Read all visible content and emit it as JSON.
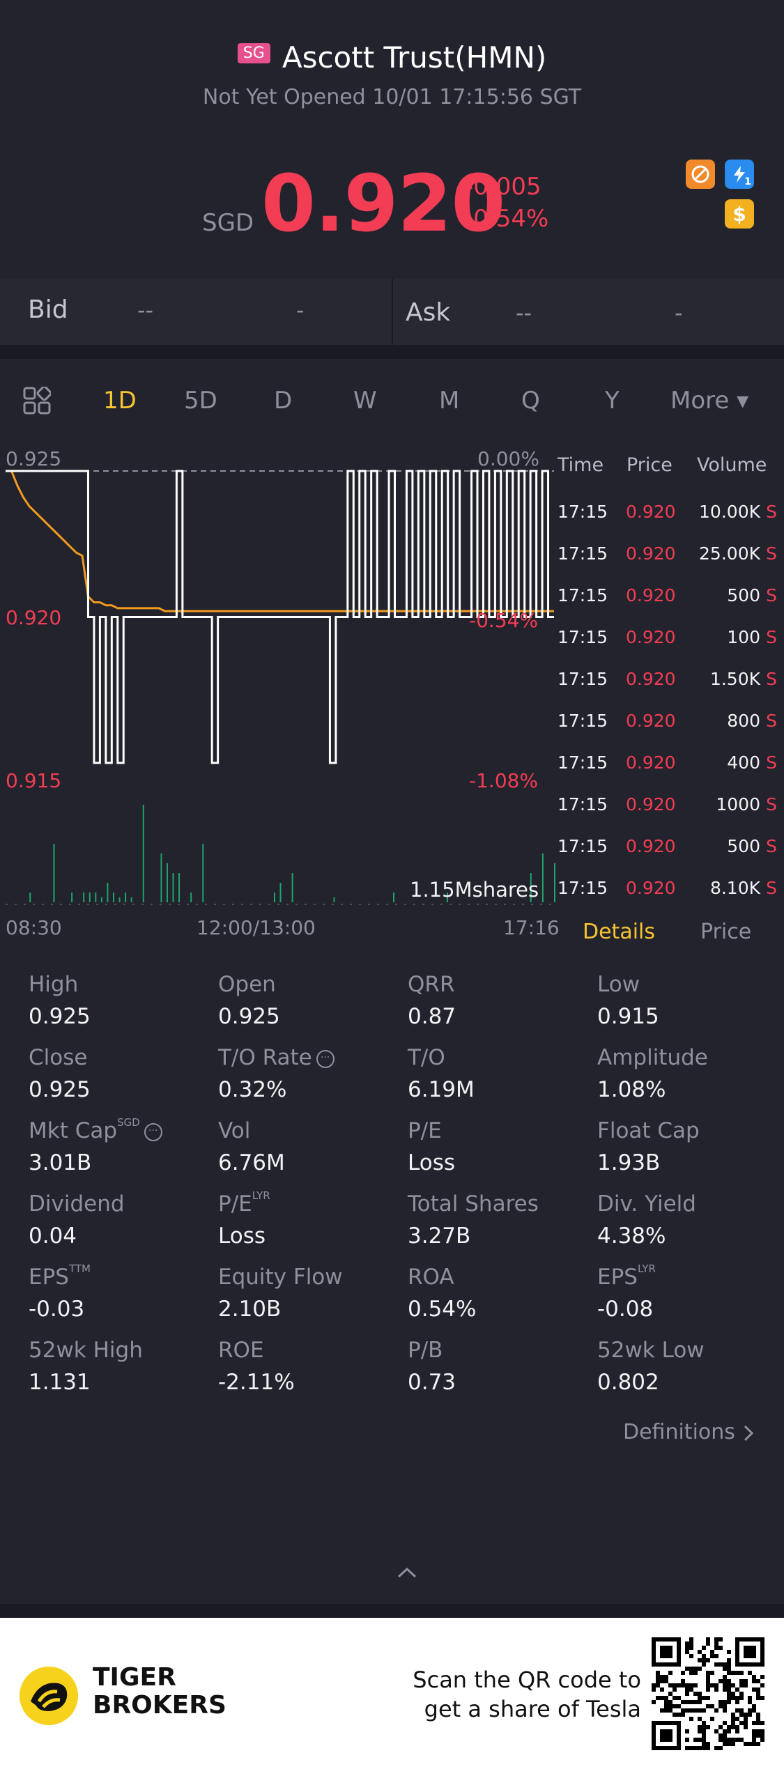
{
  "header": {
    "badge": "SG",
    "title": "Ascott Trust(HMN)",
    "status": "Not Yet Opened 10/01 17:15:56 SGT"
  },
  "quote": {
    "currency": "SGD",
    "price": "0.920",
    "change": "-0.005",
    "change_pct": "-0.54%"
  },
  "badges": {
    "b1_icon": "no-entry-icon",
    "b2_icon": "lightning-icon",
    "b2_sub": "1",
    "b3_icon": "dollar-icon",
    "b3_label": "$"
  },
  "bidask": {
    "bid_label": "Bid",
    "bid_price": "--",
    "bid_size": "-",
    "ask_label": "Ask",
    "ask_price": "--",
    "ask_size": "-"
  },
  "tabs": {
    "grid_icon": "grid-icon",
    "items": [
      "1D",
      "5D",
      "D",
      "W",
      "M",
      "Q",
      "Y"
    ],
    "more": "More ▾",
    "active": "1D"
  },
  "chart_labels": {
    "y_top": "0.925",
    "y_mid": "0.920",
    "y_bot": "0.915",
    "pct_top": "0.00%",
    "pct_mid": "-0.54%",
    "pct_bot": "-1.08%",
    "volume": "1.15Mshares",
    "x_start": "08:30",
    "x_mid": "12:00/13:00",
    "x_end": "17:16"
  },
  "chart_data": {
    "type": "line",
    "ylim": [
      0.915,
      0.925
    ],
    "x": [
      "08:30",
      "12:00/13:00",
      "17:16"
    ],
    "price_series": [
      0.925,
      0.925,
      0.925,
      0.925,
      0.925,
      0.925,
      0.925,
      0.925,
      0.925,
      0.925,
      0.925,
      0.925,
      0.925,
      0.925,
      0.92,
      0.915,
      0.92,
      0.915,
      0.92,
      0.915,
      0.92,
      0.92,
      0.92,
      0.92,
      0.92,
      0.92,
      0.92,
      0.92,
      0.92,
      0.925,
      0.92,
      0.92,
      0.92,
      0.92,
      0.92,
      0.915,
      0.92,
      0.92,
      0.92,
      0.92,
      0.92,
      0.92,
      0.92,
      0.92,
      0.92,
      0.92,
      0.92,
      0.92,
      0.92,
      0.92,
      0.92,
      0.92,
      0.92,
      0.92,
      0.92,
      0.915,
      0.92,
      0.92,
      0.925,
      0.92,
      0.925,
      0.92,
      0.925,
      0.92,
      0.92,
      0.925,
      0.92,
      0.92,
      0.925,
      0.92,
      0.925,
      0.92,
      0.925,
      0.92,
      0.925,
      0.92,
      0.925,
      0.92,
      0.92,
      0.925,
      0.92,
      0.925,
      0.92,
      0.925,
      0.92,
      0.925,
      0.92,
      0.925,
      0.92,
      0.925,
      0.92,
      0.925,
      0.92,
      0.92
    ],
    "avg_series": [
      0.925,
      0.925,
      0.9245,
      0.9241,
      0.9238,
      0.9236,
      0.9234,
      0.9232,
      0.923,
      0.9228,
      0.9226,
      0.9224,
      0.9222,
      0.9221,
      0.9207,
      0.9205,
      0.9205,
      0.9204,
      0.9204,
      0.9203,
      0.9203,
      0.9203,
      0.9203,
      0.9203,
      0.9203,
      0.9203,
      0.9203,
      0.9202,
      0.9202,
      0.9202,
      0.9202,
      0.9202,
      0.9202,
      0.9202,
      0.9202,
      0.9202,
      0.9202,
      0.9202,
      0.9202,
      0.9202,
      0.9202,
      0.9202,
      0.9202,
      0.9202,
      0.9202,
      0.9202,
      0.9202,
      0.9202,
      0.9202,
      0.9202,
      0.9202,
      0.9202,
      0.9202,
      0.9202,
      0.9202,
      0.9202,
      0.9202,
      0.9202,
      0.9202,
      0.9202,
      0.9202,
      0.9202,
      0.9202,
      0.9202,
      0.9202,
      0.9202,
      0.9202,
      0.9202,
      0.9202,
      0.9202,
      0.9202,
      0.9202,
      0.9202,
      0.9202,
      0.9202,
      0.9202,
      0.9202,
      0.9202,
      0.9202,
      0.9202,
      0.9202,
      0.9202,
      0.9202,
      0.9202,
      0.9202,
      0.9202,
      0.9202,
      0.9202,
      0.9202,
      0.9202,
      0.9202,
      0.9202,
      0.9202,
      0.9202
    ],
    "volume_series": [
      0,
      0,
      0,
      0,
      0.1,
      0,
      0,
      0,
      0.6,
      0,
      0,
      0.1,
      0,
      0.1,
      0.1,
      0.1,
      0.05,
      0.2,
      0.1,
      0.05,
      0.1,
      0.05,
      0,
      1.0,
      0,
      0,
      0.5,
      0.4,
      0.3,
      0.3,
      0,
      0.1,
      0,
      0.6,
      0,
      0,
      0,
      0,
      0,
      0,
      0,
      0,
      0,
      0,
      0,
      0.1,
      0.2,
      0,
      0.3,
      0,
      0,
      0,
      0,
      0,
      0,
      0.05,
      0,
      0,
      0,
      0,
      0,
      0,
      0,
      0,
      0,
      0.1,
      0,
      0,
      0,
      0,
      0,
      0,
      0,
      0,
      0.1,
      0,
      0,
      0,
      0,
      0,
      0,
      0,
      0,
      0,
      0,
      0,
      0,
      0,
      0.3,
      0,
      0.5,
      0,
      0.4
    ]
  },
  "ticks": {
    "headers": [
      "Time",
      "Price",
      "Volume"
    ],
    "rows": [
      {
        "time": "17:15",
        "price": "0.920",
        "vol": "10.00K",
        "side": "S"
      },
      {
        "time": "17:15",
        "price": "0.920",
        "vol": "25.00K",
        "side": "S"
      },
      {
        "time": "17:15",
        "price": "0.920",
        "vol": "500",
        "side": "S"
      },
      {
        "time": "17:15",
        "price": "0.920",
        "vol": "100",
        "side": "S"
      },
      {
        "time": "17:15",
        "price": "0.920",
        "vol": "1.50K",
        "side": "S"
      },
      {
        "time": "17:15",
        "price": "0.920",
        "vol": "800",
        "side": "S"
      },
      {
        "time": "17:15",
        "price": "0.920",
        "vol": "400",
        "side": "S"
      },
      {
        "time": "17:15",
        "price": "0.920",
        "vol": "1000",
        "side": "S"
      },
      {
        "time": "17:15",
        "price": "0.920",
        "vol": "500",
        "side": "S"
      },
      {
        "time": "17:15",
        "price": "0.920",
        "vol": "8.10K",
        "side": "S"
      }
    ],
    "details_tab": "Details",
    "price_tab": "Price"
  },
  "stats": {
    "high": {
      "k": "High",
      "v": "0.925"
    },
    "open": {
      "k": "Open",
      "v": "0.925"
    },
    "qrr": {
      "k": "QRR",
      "v": "0.87"
    },
    "low": {
      "k": "Low",
      "v": "0.915"
    },
    "close": {
      "k": "Close",
      "v": "0.925"
    },
    "to_rate": {
      "k": "T/O Rate",
      "v": "0.32%"
    },
    "to": {
      "k": "T/O",
      "v": "6.19M"
    },
    "amplitude": {
      "k": "Amplitude",
      "v": "1.08%"
    },
    "mkt_cap": {
      "k": "Mkt Cap",
      "sup": "SGD",
      "v": "3.01B"
    },
    "vol": {
      "k": "Vol",
      "v": "6.76M"
    },
    "pe": {
      "k": "P/E",
      "v": "Loss"
    },
    "float_cap": {
      "k": "Float Cap",
      "v": "1.93B"
    },
    "dividend": {
      "k": "Dividend",
      "v": "0.04"
    },
    "pe_lyr": {
      "k": "P/E",
      "sup": "LYR",
      "v": "Loss"
    },
    "total_shares": {
      "k": "Total Shares",
      "v": "3.27B"
    },
    "div_yield": {
      "k": "Div. Yield",
      "v": "4.38%"
    },
    "eps_ttm": {
      "k": "EPS",
      "sup": "TTM",
      "v": "-0.03"
    },
    "equity_flow": {
      "k": "Equity Flow",
      "v": "2.10B"
    },
    "roa": {
      "k": "ROA",
      "v": "0.54%"
    },
    "eps_lyr": {
      "k": "EPS",
      "sup": "LYR",
      "v": "-0.08"
    },
    "wk52_high": {
      "k": "52wk High",
      "v": "1.131"
    },
    "roe": {
      "k": "ROE",
      "v": "-2.11%"
    },
    "pb": {
      "k": "P/B",
      "v": "0.73"
    },
    "wk52_low": {
      "k": "52wk Low",
      "v": "0.802"
    },
    "definitions": "Definitions"
  },
  "footer": {
    "brand_line1": "TIGER",
    "brand_line2": "BROKERS",
    "scan_line1": "Scan the QR code to",
    "scan_line2": "get a share of Tesla"
  },
  "colors": {
    "up": "#f23d54",
    "accent": "#f6c431",
    "avg_line": "#f39a1e",
    "volume": "#1fa46b"
  }
}
